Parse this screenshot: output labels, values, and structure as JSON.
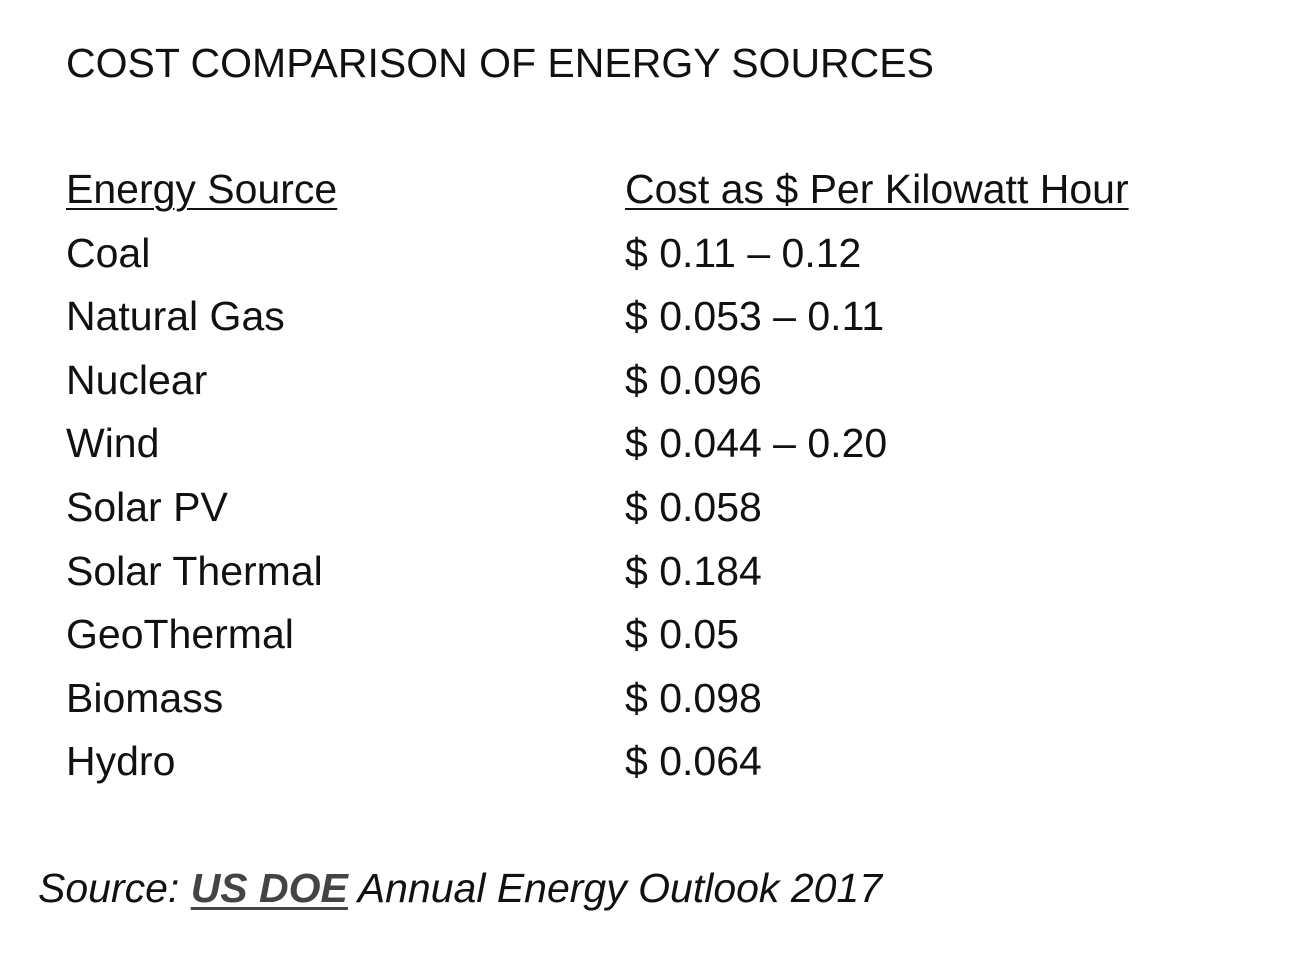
{
  "title": "COST COMPARISON OF ENERGY SOURCES",
  "table": {
    "headers": {
      "source": "Energy Source",
      "cost": "Cost as $ Per Kilowatt Hour"
    },
    "rows": [
      {
        "source": "Coal",
        "cost": "$ 0.11 – 0.12"
      },
      {
        "source": "Natural Gas",
        "cost": "$ 0.053 – 0.11"
      },
      {
        "source": "Nuclear",
        "cost": "$ 0.096"
      },
      {
        "source": "Wind",
        "cost": "$ 0.044 – 0.20"
      },
      {
        "source": "Solar PV",
        "cost": "$ 0.058"
      },
      {
        "source": "Solar Thermal",
        "cost": "$ 0.184"
      },
      {
        "source": "GeoThermal",
        "cost": "$ 0.05"
      },
      {
        "source": "Biomass",
        "cost": "$ 0.098"
      },
      {
        "source": "Hydro",
        "cost": "$ 0.064"
      }
    ]
  },
  "footer": {
    "prefix": "Source: ",
    "link_text": "US DOE",
    "suffix": " Annual Energy Outlook 2017"
  }
}
